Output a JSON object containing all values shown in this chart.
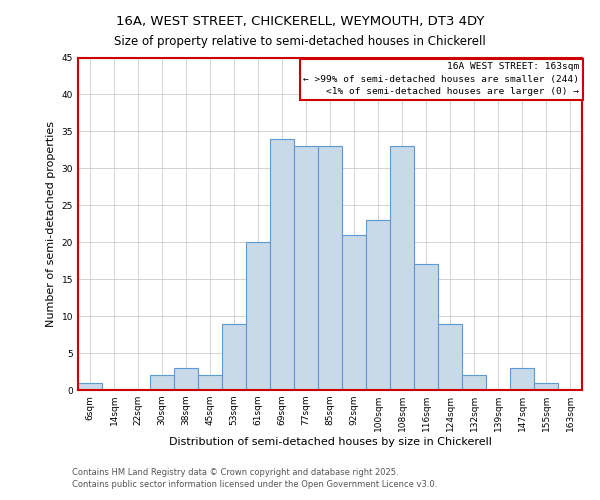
{
  "title": "16A, WEST STREET, CHICKERELL, WEYMOUTH, DT3 4DY",
  "subtitle": "Size of property relative to semi-detached houses in Chickerell",
  "xlabel": "Distribution of semi-detached houses by size in Chickerell",
  "ylabel": "Number of semi-detached properties",
  "bin_labels": [
    "6sqm",
    "14sqm",
    "22sqm",
    "30sqm",
    "38sqm",
    "45sqm",
    "53sqm",
    "61sqm",
    "69sqm",
    "77sqm",
    "85sqm",
    "92sqm",
    "100sqm",
    "108sqm",
    "116sqm",
    "124sqm",
    "132sqm",
    "139sqm",
    "147sqm",
    "155sqm",
    "163sqm"
  ],
  "bar_heights": [
    1,
    0,
    0,
    2,
    3,
    2,
    9,
    20,
    34,
    33,
    33,
    21,
    23,
    33,
    17,
    9,
    2,
    0,
    3,
    1,
    0
  ],
  "bar_color": "#c9d9e8",
  "bar_edge_color": "#5b9bd5",
  "annotation_box_color": "#ffffff",
  "annotation_box_edge_color": "#cc0000",
  "annotation_title": "16A WEST STREET: 163sqm",
  "annotation_line1": "← >99% of semi-detached houses are smaller (244)",
  "annotation_line2": "<1% of semi-detached houses are larger (0) →",
  "ylim": [
    0,
    45
  ],
  "yticks": [
    0,
    5,
    10,
    15,
    20,
    25,
    30,
    35,
    40,
    45
  ],
  "footer1": "Contains HM Land Registry data © Crown copyright and database right 2025.",
  "footer2": "Contains public sector information licensed under the Open Government Licence v3.0.",
  "background_color": "#ffffff",
  "grid_color": "#cccccc",
  "title_fontsize": 9.5,
  "subtitle_fontsize": 8.5,
  "axis_label_fontsize": 8.0,
  "tick_fontsize": 6.5,
  "annotation_fontsize": 6.8,
  "footer_fontsize": 6.0
}
